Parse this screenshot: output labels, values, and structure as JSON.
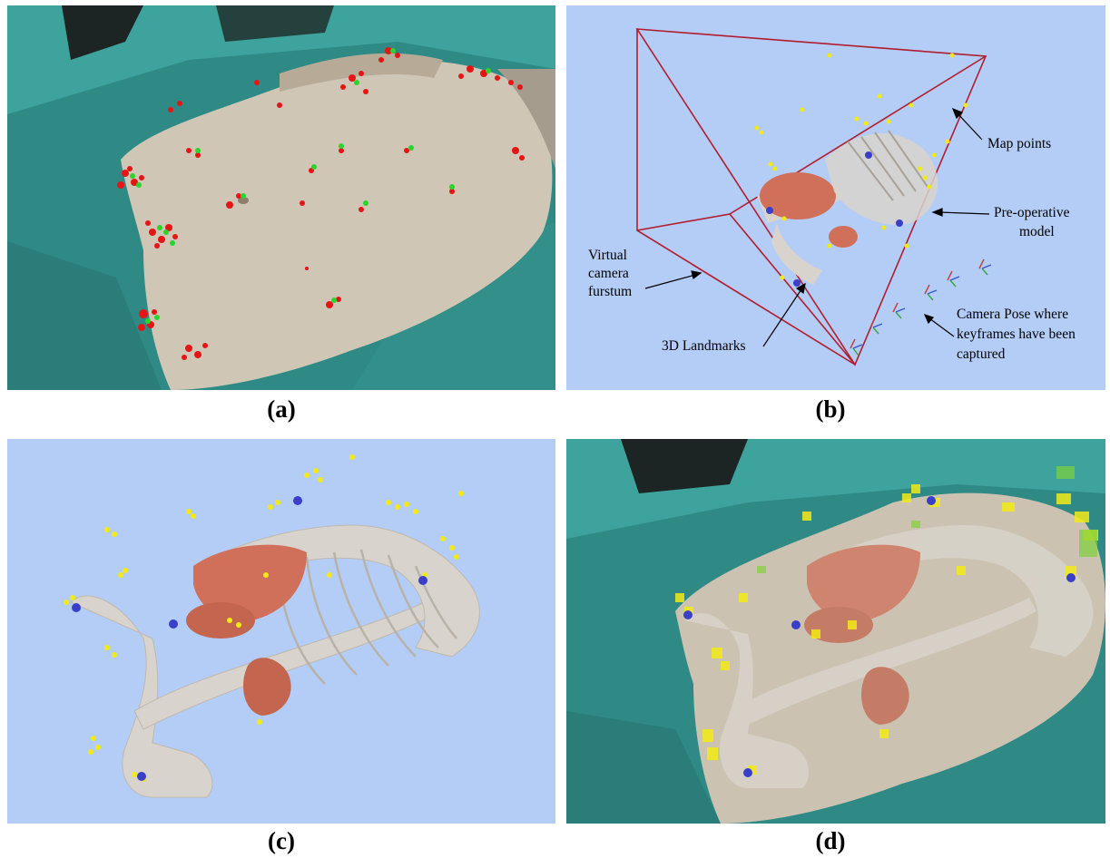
{
  "panels": {
    "a": {
      "caption": "(a)"
    },
    "b": {
      "caption": "(b)",
      "annotations": {
        "map_points": "Map points",
        "pre_op_1": "Pre-operative",
        "pre_op_2": "model",
        "virtual_1": "Virtual",
        "virtual_2": "camera",
        "virtual_3": "furstum",
        "landmarks": "3D Landmarks",
        "pose_1": "Camera Pose where",
        "pose_2": "keyframes have been",
        "pose_3": "captured"
      }
    },
    "c": {
      "caption": "(c)"
    },
    "d": {
      "caption": "(d)"
    }
  },
  "colors": {
    "drape": "#3a9a94",
    "skin": "#cfc6b6",
    "viewer_bg": "#b3cdf7",
    "bone": "#d8d3cc",
    "organ": "#d0705a",
    "tracked_point": "#e51515",
    "matched_point": "#2bd42b",
    "map_point": "#f2ea16",
    "landmark": "#3a3fc8",
    "frustum": "#b21d2e"
  }
}
